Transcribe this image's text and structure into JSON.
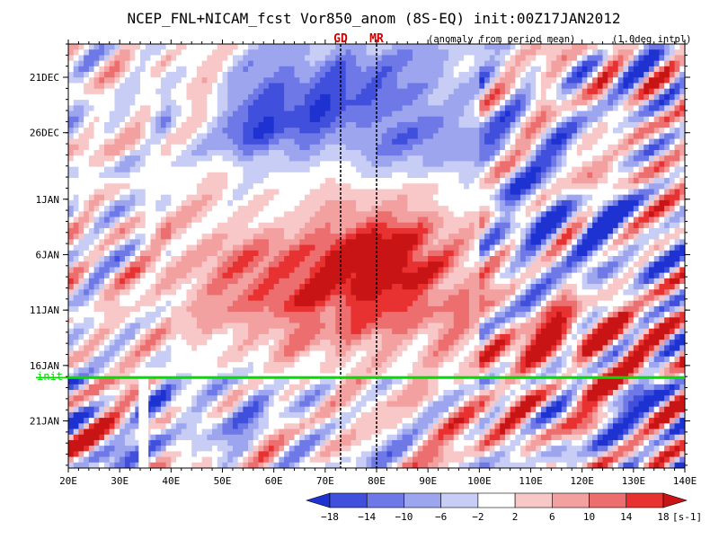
{
  "chart_data": {
    "type": "heatmap",
    "title": "NCEP_FNL+NICAM_fcst Vor850_anom (8S-EQ) init:00Z17JAN2012",
    "subtitle_left": "(anomaly from period mean)",
    "subtitle_right": "(1.0deg intpl)",
    "xlabel": "",
    "ylabel": "",
    "x_axis": {
      "unit": "longitude",
      "range": [
        "20E",
        "140E"
      ],
      "ticks": [
        "20E",
        "30E",
        "40E",
        "50E",
        "60E",
        "70E",
        "80E",
        "90E",
        "100E",
        "110E",
        "120E",
        "130E",
        "140E"
      ]
    },
    "y_axis": {
      "unit": "date",
      "range": [
        "18DEC2011",
        "25JAN2012"
      ],
      "ticks": [
        "21DEC",
        "26DEC",
        "1JAN",
        "6JAN",
        "11JAN",
        "16JAN",
        "21JAN"
      ],
      "direction": "time increases downward"
    },
    "vertical_markers": [
      {
        "label": "GD",
        "lon": 73
      },
      {
        "label": "MR",
        "lon": 80
      }
    ],
    "init_line": {
      "label": "init",
      "date": "17JAN2012 00Z",
      "color": "#00dd00"
    },
    "colorbar": {
      "unit": "[s-1]",
      "levels": [
        "-18",
        "-14",
        "-10",
        "-6",
        "-2",
        "2",
        "6",
        "10",
        "14",
        "18"
      ],
      "colors": [
        "#1e32d2",
        "#4150dc",
        "#6e78e6",
        "#9ca5ee",
        "#c8cdf5",
        "#ffffff",
        "#f8c8c8",
        "#f2a0a0",
        "#ec6e6e",
        "#e83232",
        "#c81414"
      ]
    },
    "features": [
      {
        "description": "negative anomaly band",
        "from": [
          "40E",
          "27DEC"
        ],
        "to": [
          "100E",
          "22DEC"
        ],
        "sign": "negative"
      },
      {
        "description": "positive anomaly region",
        "from": [
          "45E",
          "1JAN"
        ],
        "to": [
          "95E",
          "12JAN"
        ],
        "sign": "positive"
      },
      {
        "description": "alternating eastward-propagating signals",
        "from": [
          "100E",
          "21DEC"
        ],
        "to": [
          "140E",
          "25JAN"
        ],
        "sign": "mixed"
      }
    ]
  }
}
